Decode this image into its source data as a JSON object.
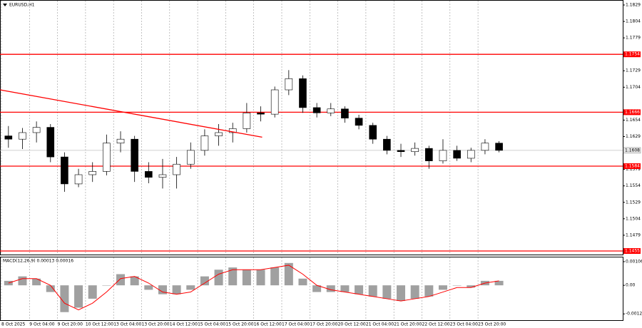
{
  "chart_data": {
    "type": "candlestick",
    "title": "EURUSD,H1",
    "ylim": [
      1.14496,
      1.18355
    ],
    "yticks": [
      1.1829,
      1.1804,
      1.1779,
      1.1729,
      1.1704,
      1.1654,
      1.1629,
      1.1579,
      1.1554,
      1.1529,
      1.1504,
      1.1479
    ],
    "levels": [
      1.1754,
      1.1666,
      1.1584,
      1.1455
    ],
    "level_color": "#ff0000",
    "last_price": 1.1608,
    "x_labels": [
      "8 Oct 2025",
      "9 Oct 04:00",
      "9 Oct 20:00",
      "10 Oct 12:00",
      "13 Oct 04:00",
      "13 Oct 20:00",
      "14 Oct 12:00",
      "15 Oct 04:00",
      "15 Oct 20:00",
      "16 Oct 12:00",
      "17 Oct 04:00",
      "17 Oct 20:00",
      "20 Oct 12:00",
      "21 Oct 04:00",
      "21 Oct 20:00",
      "22 Oct 12:00",
      "23 Oct 04:00",
      "23 Oct 20:00"
    ],
    "ohlc": [
      [
        1.163,
        1.1645,
        1.1612,
        1.1625
      ],
      [
        1.1625,
        1.1642,
        1.161,
        1.1635
      ],
      [
        1.1635,
        1.1652,
        1.162,
        1.1643
      ],
      [
        1.1643,
        1.1648,
        1.159,
        1.1598
      ],
      [
        1.1598,
        1.1605,
        1.1545,
        1.1557
      ],
      [
        1.1557,
        1.158,
        1.1552,
        1.1571
      ],
      [
        1.1571,
        1.159,
        1.156,
        1.1576
      ],
      [
        1.1576,
        1.1632,
        1.157,
        1.1619
      ],
      [
        1.1619,
        1.1637,
        1.1605,
        1.1625
      ],
      [
        1.1625,
        1.163,
        1.156,
        1.1576
      ],
      [
        1.1576,
        1.159,
        1.1558,
        1.1567
      ],
      [
        1.1567,
        1.1595,
        1.155,
        1.1571
      ],
      [
        1.1571,
        1.1598,
        1.155,
        1.1587
      ],
      [
        1.1587,
        1.162,
        1.158,
        1.1608
      ],
      [
        1.1608,
        1.164,
        1.16,
        1.163
      ],
      [
        1.163,
        1.1648,
        1.1615,
        1.1635
      ],
      [
        1.1635,
        1.165,
        1.162,
        1.1641
      ],
      [
        1.1641,
        1.168,
        1.1635,
        1.1665
      ],
      [
        1.1665,
        1.1675,
        1.1652,
        1.1663
      ],
      [
        1.1663,
        1.1705,
        1.1658,
        1.17
      ],
      [
        1.17,
        1.173,
        1.1692,
        1.1717
      ],
      [
        1.1717,
        1.1722,
        1.1665,
        1.1673
      ],
      [
        1.1673,
        1.168,
        1.1658,
        1.1665
      ],
      [
        1.1665,
        1.168,
        1.166,
        1.1671
      ],
      [
        1.1671,
        1.1675,
        1.165,
        1.1657
      ],
      [
        1.1657,
        1.1662,
        1.164,
        1.1646
      ],
      [
        1.1646,
        1.165,
        1.1618,
        1.1625
      ],
      [
        1.1625,
        1.163,
        1.1602,
        1.1608
      ],
      [
        1.1608,
        1.1618,
        1.1598,
        1.1606
      ],
      [
        1.1606,
        1.162,
        1.16,
        1.1611
      ],
      [
        1.1611,
        1.1615,
        1.158,
        1.1592
      ],
      [
        1.1592,
        1.1625,
        1.1588,
        1.1608
      ],
      [
        1.1608,
        1.1615,
        1.1592,
        1.1596
      ],
      [
        1.1596,
        1.1612,
        1.159,
        1.1608
      ],
      [
        1.1608,
        1.1625,
        1.1602,
        1.1619
      ],
      [
        1.1619,
        1.1622,
        1.1605,
        1.1608
      ]
    ],
    "trendline": {
      "x": [
        -0.6,
        18.1
      ],
      "values": [
        1.17,
        1.1628
      ],
      "color": "#ff0000"
    },
    "macd": {
      "title": "MACD(12,26,9) 0.00013 0.00016",
      "ylim": [
        -0.00156,
        0.00125
      ],
      "yticks": [
        0.00106,
        {
          "value": 0,
          "label": "0.00"
        },
        -0.00128
      ],
      "histogram": [
        0.0002,
        0.0004,
        0.0003,
        -0.0003,
        -0.0012,
        -0.001,
        -0.0006,
        0.0,
        0.0005,
        0.0004,
        -0.0002,
        -0.0004,
        -0.0004,
        -0.0002,
        0.0004,
        0.0007,
        0.0008,
        0.0007,
        0.0007,
        0.0008,
        0.001,
        0.0003,
        -0.0003,
        -0.0003,
        -0.0003,
        -0.0004,
        -0.0005,
        -0.0006,
        -0.0007,
        -0.0006,
        -0.0005,
        -0.0002,
        0.0,
        -0.0001,
        0.0002,
        0.0002
      ],
      "signal": [
        0.0001,
        0.0003,
        0.0003,
        0.0,
        -0.0008,
        -0.0011,
        -0.0008,
        -0.0003,
        0.0003,
        0.0004,
        0.0001,
        -0.0003,
        -0.0004,
        -0.0003,
        0.0001,
        0.0005,
        0.0007,
        0.0007,
        0.0007,
        0.0008,
        0.0009,
        0.0005,
        0.0,
        -0.0002,
        -0.0003,
        -0.0004,
        -0.0005,
        -0.0006,
        -0.0007,
        -0.0006,
        -0.0005,
        -0.0003,
        -0.0001,
        -0.0001,
        0.0001,
        0.0002
      ],
      "histogram_color": "#a0a0a0",
      "signal_color": "#ff0000"
    }
  }
}
